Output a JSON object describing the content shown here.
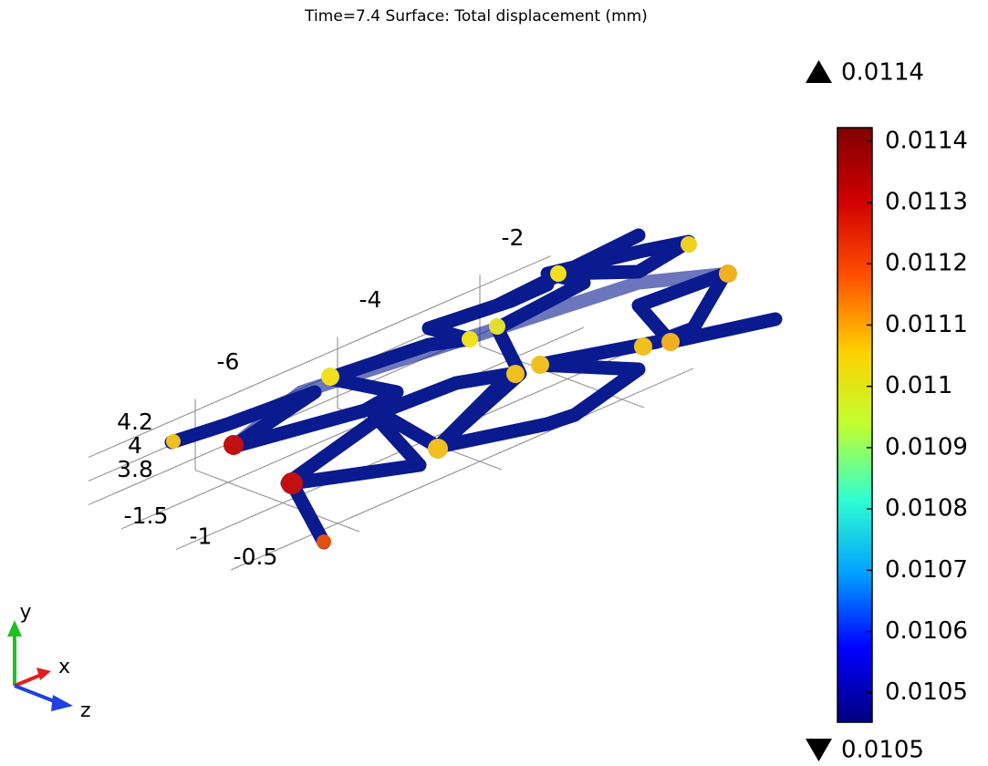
{
  "chart_data": {
    "type": "surface",
    "title": "Time=7.4   Surface: Total displacement (mm)",
    "max_value": 0.0114,
    "min_value": 0.0105,
    "colorbar": {
      "clim": [
        0.010452,
        0.011422
      ],
      "ticks": [
        0.0105,
        0.0106,
        0.0107,
        0.0108,
        0.0109,
        0.011,
        0.0111,
        0.0112,
        0.0113,
        0.0114
      ],
      "colors": [
        "#00007f",
        "#0000ff",
        "#00a0ff",
        "#30ffd0",
        "#c0ff30",
        "#ffd000",
        "#ff5000",
        "#d00000",
        "#7f0000"
      ]
    },
    "xticks": [
      -6,
      -4,
      -2
    ],
    "yticks": [
      4.2,
      4,
      3.8
    ],
    "zticks": [
      -1.5,
      -1,
      -0.5
    ],
    "xlim": [
      -7.5,
      -1
    ],
    "ylim": [
      3.7,
      4.3
    ],
    "zlim": [
      -1.8,
      -0.3
    ],
    "grid": true,
    "triad": {
      "y": "y",
      "x": "x",
      "z": "z"
    }
  }
}
